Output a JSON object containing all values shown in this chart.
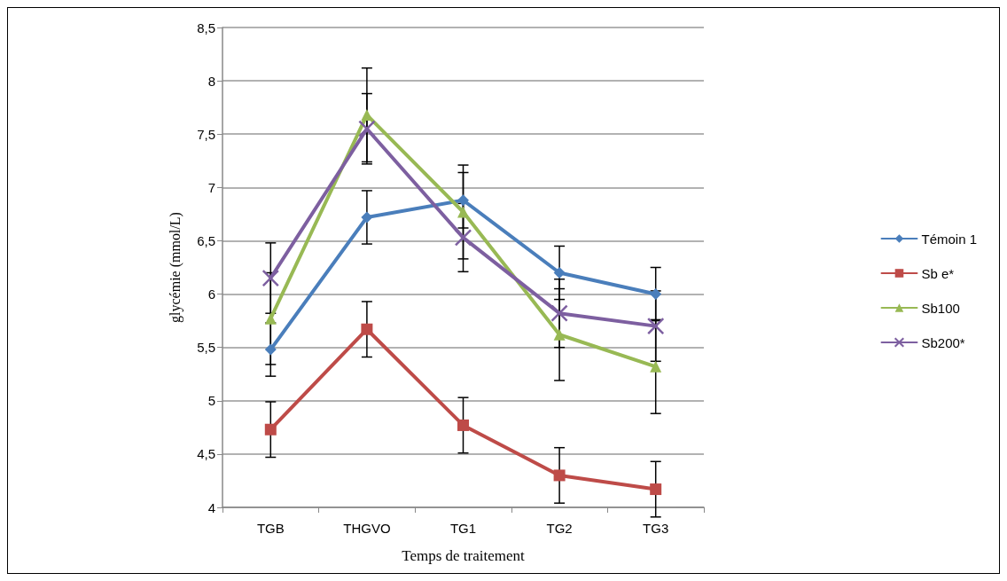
{
  "chart_data": {
    "type": "line",
    "xlabel": "Temps de traitement",
    "ylabel": "glycémie (mmol/L)",
    "categories": [
      "TGB",
      "THGVO",
      "TG1",
      "TG2",
      "TG3"
    ],
    "series": [
      {
        "name": "Témoin 1",
        "color": "#4a7ebb",
        "marker": "diamond",
        "values": [
          5.48,
          6.72,
          6.88,
          6.2,
          6.0
        ],
        "errors": [
          0.25,
          0.25,
          0.26,
          0.25,
          0.25
        ]
      },
      {
        "name": "Sb e*",
        "color": "#be4b48",
        "marker": "square",
        "values": [
          4.73,
          5.67,
          4.77,
          4.3,
          4.17
        ],
        "errors": [
          0.26,
          0.26,
          0.26,
          0.26,
          0.26
        ]
      },
      {
        "name": "Sb100",
        "color": "#98b954",
        "marker": "triangle",
        "values": [
          5.77,
          7.68,
          6.77,
          5.62,
          5.32
        ],
        "errors": [
          0.43,
          0.44,
          0.44,
          0.43,
          0.44
        ]
      },
      {
        "name": "Sb200*",
        "color": "#7d5fa0",
        "marker": "cross",
        "values": [
          6.15,
          7.55,
          6.53,
          5.82,
          5.7
        ],
        "errors": [
          0.33,
          0.33,
          0.32,
          0.32,
          0.33
        ]
      }
    ],
    "ylim": [
      4,
      8.5
    ],
    "yticks": [
      {
        "value": 4,
        "label": "4"
      },
      {
        "value": 4.5,
        "label": "4,5"
      },
      {
        "value": 5,
        "label": "5"
      },
      {
        "value": 5.5,
        "label": "5,5"
      },
      {
        "value": 6,
        "label": "6"
      },
      {
        "value": 6.5,
        "label": "6,5"
      },
      {
        "value": 7,
        "label": "7"
      },
      {
        "value": 7.5,
        "label": "7,5"
      },
      {
        "value": 8,
        "label": "8"
      },
      {
        "value": 8.5,
        "label": "8,5"
      }
    ],
    "grid": "y",
    "legend": "right"
  }
}
